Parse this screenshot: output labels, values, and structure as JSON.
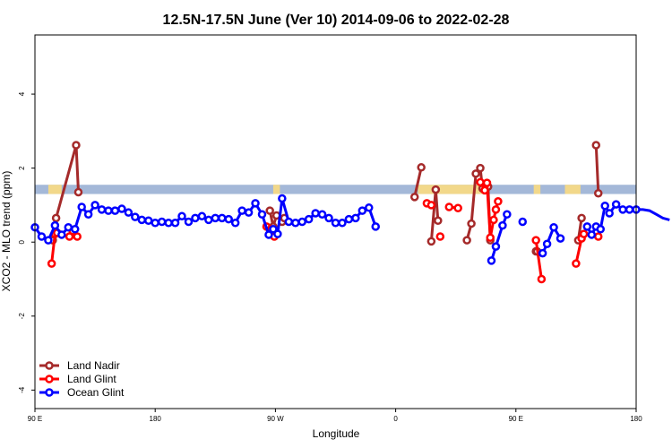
{
  "chart_data": {
    "type": "line",
    "title": "12.5N-17.5N June (Ver 10)   2014-09-06 to 2022-02-28",
    "xlabel": "Longitude",
    "ylabel": "XCO2 - MLO trend (ppm)",
    "xlim": [
      -90,
      180
    ],
    "ylim": [
      -4.5,
      5.6
    ],
    "x_ticks": [
      {
        "value": -90,
        "label": "90 E"
      },
      {
        "value": -36,
        "label": "180"
      },
      {
        "value": 18,
        "label": "90 W"
      },
      {
        "value": 72,
        "label": "0"
      },
      {
        "value": 126,
        "label": "90 E"
      },
      {
        "value": 180,
        "label": "180"
      }
    ],
    "y_ticks": [
      {
        "value": -4,
        "label": "-4"
      },
      {
        "value": -2,
        "label": "-2"
      },
      {
        "value": 0,
        "label": "0"
      },
      {
        "value": 2,
        "label": "2"
      },
      {
        "value": 4,
        "label": "4"
      }
    ],
    "land_band": {
      "ymin": 1.3,
      "ymax": 1.55,
      "ocean_color": "#a4b8d8",
      "land_color": "#f2d88a",
      "land_ranges": [
        [
          -84,
          -78
        ],
        [
          17,
          20
        ],
        [
          82,
          113
        ],
        [
          134,
          137
        ],
        [
          148,
          155
        ]
      ]
    },
    "legend": {
      "position": "bottom-left"
    },
    "series": [
      {
        "name": "Land Nadir",
        "color": "#a52a2a",
        "segments": [
          [
            [
              -82,
              0.05
            ],
            [
              -80.5,
              0.65
            ],
            [
              -71.5,
              2.62
            ],
            [
              -70.5,
              1.35
            ]
          ],
          [
            [
              15.5,
              0.85
            ],
            [
              17,
              0.42
            ],
            [
              18.5,
              0.72
            ]
          ],
          [
            [
              21,
              0.55
            ],
            [
              22,
              0.65
            ]
          ],
          [
            [
              80.5,
              1.22
            ],
            [
              83.5,
              2.02
            ]
          ],
          [
            [
              88,
              0.02
            ],
            [
              90,
              1.42
            ],
            [
              91,
              0.58
            ]
          ],
          [
            [
              104,
              0.05
            ],
            [
              106,
              0.5
            ],
            [
              108,
              1.85
            ],
            [
              110,
              2.0
            ],
            [
              111,
              1.45
            ],
            [
              113.5,
              1.5
            ],
            [
              114.5,
              0.05
            ]
          ],
          [
            [
              135,
              -0.25
            ],
            [
              135.5,
              -0.25
            ]
          ],
          [
            [
              154,
              0.05
            ],
            [
              155.5,
              0.65
            ]
          ],
          [
            [
              162,
              2.62
            ],
            [
              163,
              1.32
            ]
          ]
        ]
      },
      {
        "name": "Land Glint",
        "color": "#ff0000",
        "segments": [
          [
            [
              -82.5,
              -0.58
            ],
            [
              -81,
              0.22
            ],
            [
              -80,
              0.25
            ]
          ],
          [
            [
              -74.5,
              0.15
            ],
            [
              -73,
              0.3
            ]
          ],
          [
            [
              -71,
              0.15
            ]
          ],
          [
            [
              14,
              0.42
            ],
            [
              16,
              0.35
            ],
            [
              17.5,
              0.15
            ]
          ],
          [
            [
              86,
              1.05
            ],
            [
              88,
              1.0
            ]
          ],
          [
            [
              92,
              0.15
            ]
          ],
          [
            [
              96,
              0.95
            ],
            [
              100,
              0.92
            ]
          ],
          [
            [
              110,
              1.62
            ],
            [
              112,
              1.4
            ],
            [
              113,
              1.6
            ],
            [
              114.5,
              0.12
            ],
            [
              116,
              0.6
            ],
            [
              117,
              0.88
            ],
            [
              118,
              1.1
            ]
          ],
          [
            [
              135,
              0.05
            ],
            [
              137.5,
              -1.0
            ]
          ],
          [
            [
              153,
              -0.58
            ],
            [
              155.5,
              0.1
            ],
            [
              156.5,
              0.22
            ]
          ],
          [
            [
              163,
              0.15
            ]
          ]
        ]
      },
      {
        "name": "Ocean Glint",
        "color": "#0000ff",
        "segments": [
          [
            [
              -90,
              0.4
            ],
            [
              -87,
              0.15
            ],
            [
              -84,
              0.05
            ],
            [
              -81,
              0.45
            ],
            [
              -78,
              0.2
            ],
            [
              -75,
              0.4
            ],
            [
              -72,
              0.35
            ],
            [
              -69,
              0.95
            ],
            [
              -66,
              0.75
            ],
            [
              -63,
              1.0
            ],
            [
              -60,
              0.88
            ],
            [
              -57,
              0.85
            ],
            [
              -54,
              0.85
            ],
            [
              -51,
              0.9
            ],
            [
              -48,
              0.8
            ],
            [
              -45,
              0.68
            ],
            [
              -42,
              0.6
            ],
            [
              -39,
              0.58
            ],
            [
              -36,
              0.52
            ],
            [
              -33,
              0.55
            ],
            [
              -30,
              0.52
            ],
            [
              -27,
              0.52
            ],
            [
              -24,
              0.7
            ],
            [
              -21,
              0.55
            ],
            [
              -18,
              0.65
            ],
            [
              -15,
              0.7
            ],
            [
              -12,
              0.6
            ],
            [
              -9,
              0.65
            ],
            [
              -6,
              0.65
            ],
            [
              -3,
              0.62
            ],
            [
              0,
              0.52
            ],
            [
              3,
              0.85
            ],
            [
              6,
              0.8
            ],
            [
              9,
              1.05
            ],
            [
              12,
              0.75
            ],
            [
              15,
              0.2
            ],
            [
              17,
              0.35
            ],
            [
              19,
              0.22
            ],
            [
              21,
              1.18
            ],
            [
              24,
              0.55
            ],
            [
              27,
              0.52
            ],
            [
              30,
              0.55
            ],
            [
              33,
              0.62
            ],
            [
              36,
              0.78
            ],
            [
              39,
              0.75
            ],
            [
              42,
              0.65
            ],
            [
              45,
              0.52
            ],
            [
              48,
              0.52
            ],
            [
              51,
              0.62
            ],
            [
              54,
              0.65
            ],
            [
              57,
              0.85
            ],
            [
              60,
              0.93
            ],
            [
              63,
              0.42
            ]
          ],
          [
            [
              115,
              -0.5
            ],
            [
              117,
              -0.12
            ],
            [
              120,
              0.45
            ],
            [
              122,
              0.75
            ]
          ],
          [
            [
              129,
              0.55
            ]
          ],
          [
            [
              138,
              -0.3
            ],
            [
              140,
              -0.05
            ],
            [
              143,
              0.4
            ],
            [
              146,
              0.1
            ]
          ],
          [
            [
              158,
              0.42
            ],
            [
              160,
              0.2
            ],
            [
              162,
              0.42
            ],
            [
              164,
              0.35
            ],
            [
              166,
              0.98
            ],
            [
              168,
              0.78
            ],
            [
              171,
              1.02
            ],
            [
              174,
              0.88
            ],
            [
              177,
              0.88
            ],
            [
              180,
              0.88
            ],
            [
              183,
              0.88
            ],
            [
              186,
              0.85
            ],
            [
              189,
              0.75
            ],
            [
              192,
              0.65
            ],
            [
              195,
              0.6
            ]
          ]
        ]
      }
    ]
  }
}
